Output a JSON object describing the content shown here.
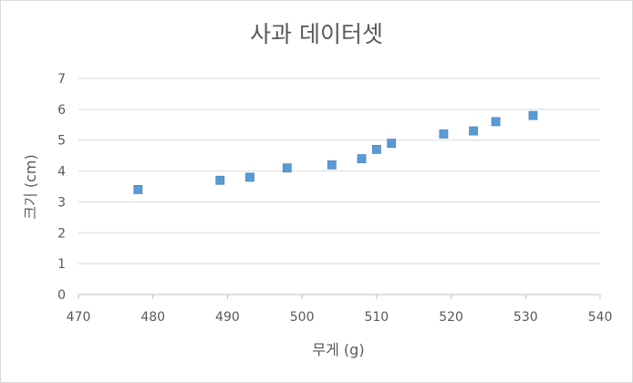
{
  "chart_data": {
    "type": "scatter",
    "title": "사과 데이터셋",
    "xlabel": "무게 (g)",
    "ylabel": "크기 (cm)",
    "xlim": [
      470,
      540
    ],
    "ylim": [
      0,
      7
    ],
    "x_ticks": [
      "470",
      "480",
      "490",
      "500",
      "510",
      "520",
      "530",
      "540"
    ],
    "y_ticks": [
      "0",
      "1",
      "2",
      "3",
      "4",
      "5",
      "6",
      "7"
    ],
    "grid": true,
    "legend": "none",
    "marker": "square",
    "marker_color": "#5B9BD5",
    "points": [
      {
        "x": 478,
        "y": 3.4
      },
      {
        "x": 489,
        "y": 3.7
      },
      {
        "x": 493,
        "y": 3.8
      },
      {
        "x": 498,
        "y": 4.1
      },
      {
        "x": 504,
        "y": 4.2
      },
      {
        "x": 508,
        "y": 4.4
      },
      {
        "x": 510,
        "y": 4.7
      },
      {
        "x": 512,
        "y": 4.9
      },
      {
        "x": 519,
        "y": 5.2
      },
      {
        "x": 523,
        "y": 5.3
      },
      {
        "x": 526,
        "y": 5.6
      },
      {
        "x": 531,
        "y": 5.8
      }
    ]
  }
}
